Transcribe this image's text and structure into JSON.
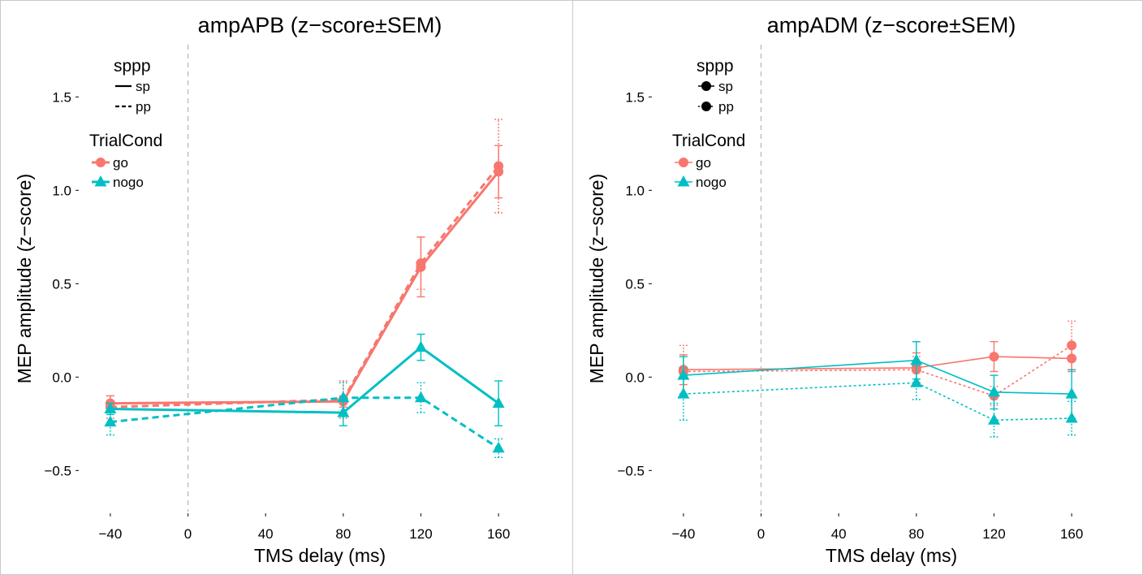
{
  "colors": {
    "go": "#F8766D",
    "nogo": "#00BFC4",
    "axis": "#333333",
    "refline": "#bdbdbd"
  },
  "chart_data": [
    {
      "type": "line",
      "title": "ampAPB (z−score±SEM)",
      "xlabel": "TMS delay (ms)",
      "ylabel": "MEP amplitude (z−score)",
      "x_ticks": [
        "−40",
        "0",
        "40",
        "80",
        "120",
        "160"
      ],
      "x_tick_values": [
        -40,
        0,
        40,
        80,
        120,
        160
      ],
      "y_ticks": [
        "−0.5",
        "0.0",
        "0.5",
        "1.0",
        "1.5"
      ],
      "y_tick_values": [
        -0.5,
        0,
        0.5,
        1.0,
        1.5
      ],
      "xlim": [
        -55,
        175
      ],
      "ylim": [
        -0.72,
        1.78
      ],
      "ref_x": 0,
      "legend": {
        "sppp_title": "sppp",
        "sppp_items": [
          "sp",
          "pp"
        ],
        "trial_title": "TrialCond",
        "trial_items": [
          "go",
          "nogo"
        ],
        "position": "top-left"
      },
      "series": [
        {
          "name": "go",
          "sppp": "sp",
          "x": [
            -40,
            80,
            120,
            160
          ],
          "y": [
            -0.14,
            -0.13,
            0.59,
            1.1
          ],
          "err": [
            0.04,
            0.03,
            0.16,
            0.14
          ]
        },
        {
          "name": "go",
          "sppp": "pp",
          "x": [
            -40,
            80,
            120,
            160
          ],
          "y": [
            -0.16,
            -0.12,
            0.61,
            1.13
          ],
          "err": [
            0.06,
            0.1,
            0.14,
            0.25
          ]
        },
        {
          "name": "nogo",
          "sppp": "sp",
          "x": [
            -40,
            80,
            120,
            160
          ],
          "y": [
            -0.17,
            -0.19,
            0.16,
            -0.14
          ],
          "err": [
            0.03,
            0.07,
            0.07,
            0.12
          ]
        },
        {
          "name": "nogo",
          "sppp": "pp",
          "x": [
            -40,
            80,
            120,
            160
          ],
          "y": [
            -0.24,
            -0.11,
            -0.11,
            -0.38
          ],
          "err": [
            0.07,
            0.08,
            0.08,
            0.05
          ]
        }
      ]
    },
    {
      "type": "line",
      "title": "ampADM (z−score±SEM)",
      "xlabel": "TMS delay (ms)",
      "ylabel": "MEP amplitude (z−score)",
      "x_ticks": [
        "−40",
        "0",
        "40",
        "80",
        "120",
        "160"
      ],
      "x_tick_values": [
        -40,
        0,
        40,
        80,
        120,
        160
      ],
      "y_ticks": [
        "−0.5",
        "0.0",
        "0.5",
        "1.0",
        "1.5"
      ],
      "y_tick_values": [
        -0.5,
        0,
        0.5,
        1.0,
        1.5
      ],
      "xlim": [
        -55,
        175
      ],
      "ylim": [
        -0.72,
        1.78
      ],
      "ref_x": 0,
      "legend": {
        "sppp_title": "sppp",
        "sppp_items": [
          "sp",
          "pp"
        ],
        "trial_title": "TrialCond",
        "trial_items": [
          "go",
          "nogo"
        ],
        "position": "top-left"
      },
      "series": [
        {
          "name": "go",
          "sppp": "sp",
          "x": [
            -40,
            80,
            120,
            160
          ],
          "y": [
            0.04,
            0.05,
            0.11,
            0.1
          ],
          "err": [
            0.08,
            0.08,
            0.08,
            0.07
          ]
        },
        {
          "name": "go",
          "sppp": "pp",
          "x": [
            -40,
            80,
            120,
            160
          ],
          "y": [
            0.03,
            0.04,
            -0.1,
            0.17
          ],
          "err": [
            0.14,
            0.07,
            0.05,
            0.13
          ]
        },
        {
          "name": "nogo",
          "sppp": "sp",
          "x": [
            -40,
            80,
            120,
            160
          ],
          "y": [
            0.01,
            0.09,
            -0.08,
            -0.09
          ],
          "err": [
            0.1,
            0.1,
            0.09,
            0.13
          ]
        },
        {
          "name": "nogo",
          "sppp": "pp",
          "x": [
            -40,
            80,
            120,
            160
          ],
          "y": [
            -0.09,
            -0.03,
            -0.23,
            -0.22
          ],
          "err": [
            0.14,
            0.09,
            0.09,
            0.09
          ]
        }
      ]
    }
  ]
}
